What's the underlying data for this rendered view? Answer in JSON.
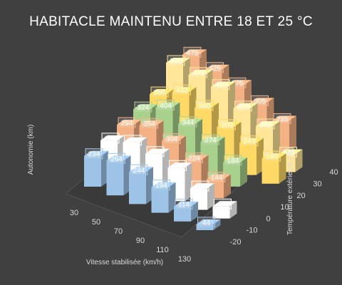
{
  "chart_data": {
    "type": "bar3d",
    "title": "HABITACLE  MAINTENU  ENTRE  18  ET  25  °C",
    "xlabel": "Vitesse stabilisée (km/h)",
    "ylabel": "Autonomie (km)",
    "zlabel": "Température extérieure (°C)",
    "x": [
      30,
      50,
      70,
      90,
      110,
      130
    ],
    "z": [
      -20,
      -10,
      0,
      10,
      20,
      30,
      40
    ],
    "series": [
      {
        "temp": -20,
        "color": "#9dc3e6",
        "values": [
          234,
          264,
          244,
          194,
          114,
          44
        ]
      },
      {
        "temp": -10,
        "color": "#ffffff",
        "values": [
          264,
          314,
          294,
          254,
          164,
          94
        ]
      },
      {
        "temp": 0,
        "color": "#f4b183",
        "values": [
          294,
          354,
          304,
          224,
          144,
          null
        ]
      },
      {
        "temp": 10,
        "color": "#a9d18e",
        "values": [
          324,
          404,
          344,
          274,
          184,
          null
        ]
      },
      {
        "temp": 20,
        "color": "#ffd966",
        "values": [
          350,
          432,
          380,
          300,
          243,
          193
        ]
      },
      {
        "temp": 30,
        "color": "#ffe699",
        "values": [
          500,
          475,
          450,
          353,
          283,
          135
        ]
      },
      {
        "temp": 40,
        "color": "#f4b183",
        "values": [
          475,
          425,
          375,
          305,
          235,
          null
        ]
      }
    ]
  }
}
